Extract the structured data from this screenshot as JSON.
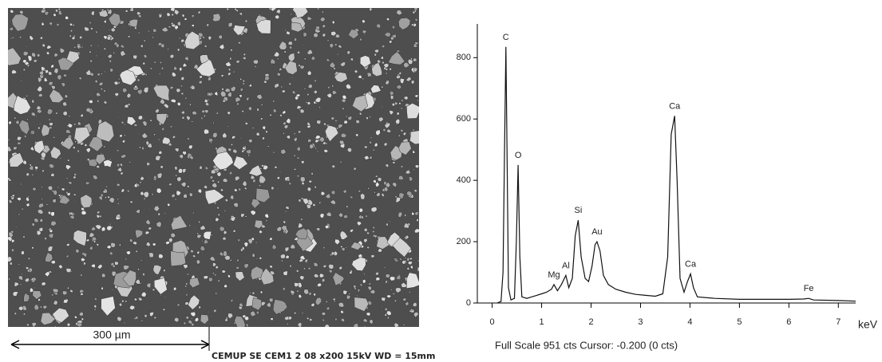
{
  "image": {
    "scale_bar": "300 µm",
    "caption": "CEMUP  SE  CEM1 2  08 x200  15kV  WD = 15mm"
  },
  "chart_data": {
    "type": "line",
    "color": "#111111",
    "x": [
      0.1,
      0.18,
      0.22,
      0.25,
      0.277,
      0.3,
      0.33,
      0.38,
      0.45,
      0.49,
      0.525,
      0.56,
      0.6,
      0.7,
      0.8,
      0.9,
      1.0,
      1.1,
      1.2,
      1.25,
      1.32,
      1.4,
      1.49,
      1.55,
      1.62,
      1.68,
      1.74,
      1.8,
      1.88,
      1.95,
      2.02,
      2.08,
      2.12,
      2.18,
      2.25,
      2.35,
      2.5,
      2.7,
      2.9,
      3.1,
      3.3,
      3.45,
      3.55,
      3.62,
      3.69,
      3.74,
      3.8,
      3.88,
      3.95,
      4.01,
      4.07,
      4.15,
      4.5,
      5.0,
      5.5,
      6.0,
      6.3,
      6.4,
      6.5,
      7.0,
      7.35
    ],
    "values": [
      0,
      5,
      100,
      500,
      835,
      500,
      50,
      10,
      15,
      200,
      450,
      150,
      20,
      15,
      20,
      25,
      30,
      35,
      45,
      60,
      40,
      60,
      90,
      50,
      80,
      220,
      270,
      150,
      80,
      70,
      120,
      190,
      200,
      170,
      90,
      60,
      45,
      35,
      28,
      25,
      22,
      30,
      150,
      550,
      610,
      400,
      80,
      35,
      70,
      95,
      50,
      20,
      15,
      12,
      12,
      12,
      13,
      15,
      10,
      8,
      6
    ],
    "xlim": [
      -0.3,
      7.35
    ],
    "ylim": [
      0,
      910
    ],
    "xticks": [
      0,
      1,
      2,
      3,
      4,
      5,
      6,
      7
    ],
    "yticks": [
      0,
      200,
      400,
      600,
      800
    ],
    "x_label": "keV",
    "grid": false,
    "annotations": [
      {
        "text": "C",
        "x": 0.277,
        "y": 835
      },
      {
        "text": "O",
        "x": 0.525,
        "y": 450
      },
      {
        "text": "Mg",
        "x": 1.25,
        "y": 60
      },
      {
        "text": "Al",
        "x": 1.49,
        "y": 90
      },
      {
        "text": "Si",
        "x": 1.74,
        "y": 270
      },
      {
        "text": "Au",
        "x": 2.12,
        "y": 200
      },
      {
        "text": "Ca",
        "x": 3.69,
        "y": 610
      },
      {
        "text": "Ca",
        "x": 4.01,
        "y": 95
      },
      {
        "text": "Fe",
        "x": 6.4,
        "y": 15
      }
    ],
    "footer": "Full Scale 951 cts Cursor: -0.200  (0 cts)"
  }
}
